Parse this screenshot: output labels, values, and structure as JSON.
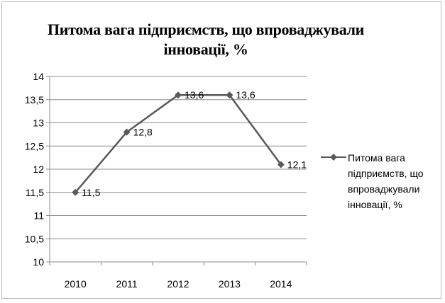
{
  "chart_data": {
    "type": "line",
    "title": "Питома вага підприємств, що впроваджували інновації, %",
    "categories": [
      "2010",
      "2011",
      "2012",
      "2013",
      "2014"
    ],
    "series": [
      {
        "name": "Питома вага підприємств, що впроваджували інновації, %",
        "values": [
          11.5,
          12.8,
          13.6,
          13.6,
          12.1
        ],
        "data_labels": [
          "11,5",
          "12,8",
          "13,6",
          "13,6",
          "12,1"
        ],
        "color": "#595959"
      }
    ],
    "yticks": [
      "10",
      "10,5",
      "11",
      "11,5",
      "12",
      "12,5",
      "13",
      "13,5",
      "14"
    ],
    "ylim": [
      10,
      14
    ],
    "ystep": 0.5,
    "grid": true,
    "legend": "right",
    "xlabel": "",
    "ylabel": ""
  }
}
